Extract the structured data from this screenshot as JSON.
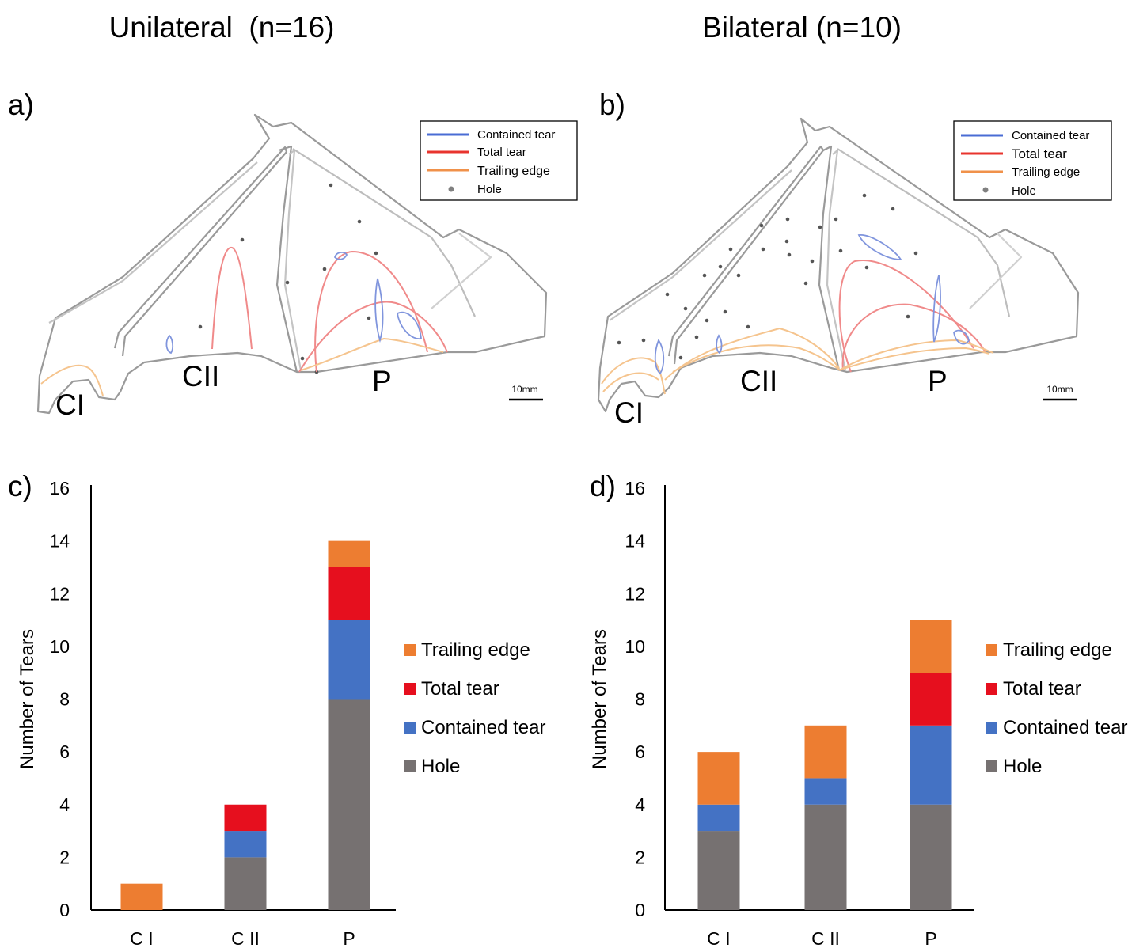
{
  "figure": {
    "left_title": "Unilateral  (n=16)",
    "right_title": "Bilateral (n=10)"
  },
  "diagrams": [
    {
      "panel_label": "a)",
      "region_labels": [
        "CI",
        "CII",
        "P"
      ],
      "scale_bar": "10mm",
      "legend": [
        {
          "label": "Contained tear",
          "color": "#4a6cd4",
          "symbol": "line"
        },
        {
          "label": "Total tear",
          "color": "#e8342e",
          "symbol": "line"
        },
        {
          "label": "Trailing edge",
          "color": "#f0914a",
          "symbol": "line"
        },
        {
          "label": "Hole",
          "color": "#808080",
          "symbol": "dot"
        }
      ]
    },
    {
      "panel_label": "b)",
      "region_labels": [
        "CI",
        "CII",
        "P"
      ],
      "scale_bar": "10mm",
      "legend": [
        {
          "label": "Contained tear",
          "color": "#4a6cd4",
          "symbol": "line"
        },
        {
          "label": "Total tear",
          "color": "#e8342e",
          "symbol": "line"
        },
        {
          "label": "Trailing edge",
          "color": "#f0914a",
          "symbol": "line"
        },
        {
          "label": "Hole",
          "color": "#808080",
          "symbol": "dot"
        }
      ]
    }
  ],
  "chart_data": [
    {
      "panel_label": "c)",
      "type": "bar",
      "stacked": true,
      "categories": [
        "C I",
        "C II",
        "P"
      ],
      "ylabel": "Number of Tears",
      "ylim": [
        0,
        16
      ],
      "yticks": [
        0,
        2,
        4,
        6,
        8,
        10,
        12,
        14,
        16
      ],
      "grid": false,
      "legend_position": "right",
      "series": [
        {
          "name": "Hole",
          "color": "#767171",
          "values": [
            0,
            2,
            8
          ]
        },
        {
          "name": "Contained tear",
          "color": "#4472c4",
          "values": [
            0,
            1,
            3
          ]
        },
        {
          "name": "Total tear",
          "color": "#e60f1e",
          "values": [
            0,
            1,
            2
          ]
        },
        {
          "name": "Trailing edge",
          "color": "#ed7d31",
          "values": [
            1,
            0,
            1
          ]
        }
      ]
    },
    {
      "panel_label": "d)",
      "type": "bar",
      "stacked": true,
      "categories": [
        "C I",
        "C II",
        "P"
      ],
      "ylabel": "Number of Tears",
      "ylim": [
        0,
        16
      ],
      "yticks": [
        0,
        2,
        4,
        6,
        8,
        10,
        12,
        14,
        16
      ],
      "grid": false,
      "legend_position": "right",
      "series": [
        {
          "name": "Hole",
          "color": "#767171",
          "values": [
            3,
            4,
            4
          ]
        },
        {
          "name": "Contained tear",
          "color": "#4472c4",
          "values": [
            1,
            1,
            3
          ]
        },
        {
          "name": "Total tear",
          "color": "#e60f1e",
          "values": [
            0,
            0,
            2
          ]
        },
        {
          "name": "Trailing edge",
          "color": "#ed7d31",
          "values": [
            2,
            2,
            2
          ]
        }
      ]
    }
  ]
}
